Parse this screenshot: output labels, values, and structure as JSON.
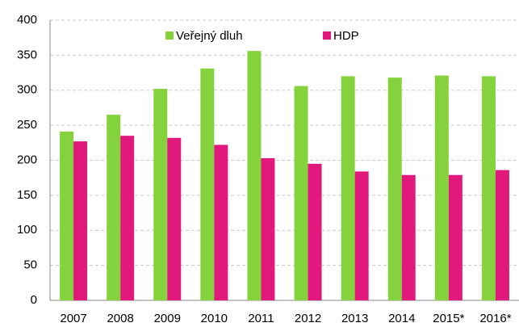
{
  "chart_data": {
    "type": "bar",
    "categories": [
      "2007",
      "2008",
      "2009",
      "2010",
      "2011",
      "2012",
      "2013",
      "2014",
      "2015*",
      "2016*"
    ],
    "series": [
      {
        "name": "Veřejný dluh",
        "color": "#84d33c",
        "values": [
          241,
          265,
          302,
          331,
          356,
          306,
          320,
          318,
          321,
          320
        ]
      },
      {
        "name": "HDP",
        "color": "#e2197c",
        "values": [
          227,
          235,
          232,
          222,
          203,
          195,
          184,
          179,
          179,
          186
        ]
      }
    ],
    "ylim": [
      0,
      400
    ],
    "yticks": [
      0,
      50,
      100,
      150,
      200,
      250,
      300,
      350,
      400
    ],
    "grid": true,
    "legend": "top"
  }
}
